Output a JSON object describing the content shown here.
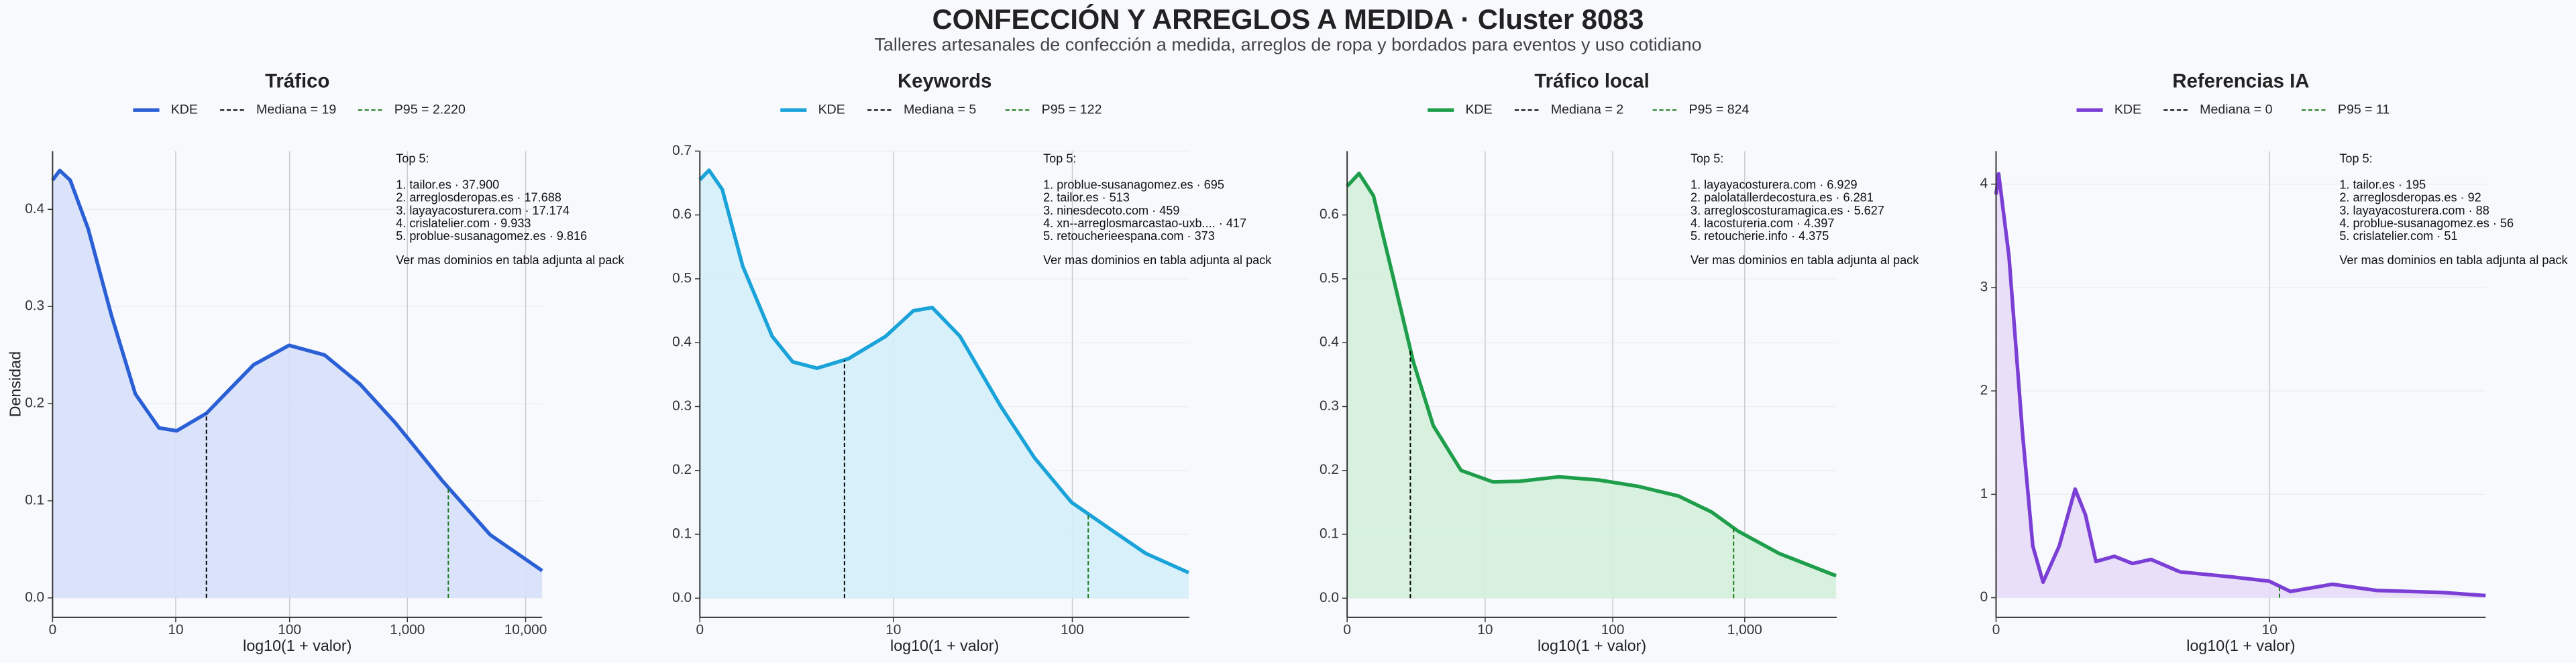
{
  "title": "CONFECCIÓN Y ARREGLOS A MEDIDA · Cluster 8083",
  "subtitle": "Talleres artesanales de confección a medida, arreglos de ropa y bordados para eventos y uso cotidiano",
  "chart_data": [
    {
      "type": "kde",
      "title": "Tráfico",
      "xlabel": "log10(1 + valor)",
      "ylabel": "Densidad",
      "xscale": "log1p",
      "xlim": [
        0,
        13800
      ],
      "xticks": [
        0,
        10,
        100,
        {
          "value": 1000,
          "label": "1,000"
        },
        {
          "value": 10000,
          "label": "10,000"
        }
      ],
      "ylim": [
        -0.02,
        0.46
      ],
      "yticks": [
        {
          "value": 0,
          "label": "0.0"
        },
        0.1,
        0.2,
        0.3,
        0.4
      ],
      "grid": true,
      "fill_color": "#d6e0f8",
      "x": [
        0,
        0.15,
        0.41,
        1.0,
        2.16,
        4.01,
        6.94,
        10.2,
        19,
        30.6,
        49.1,
        99,
        199,
        397,
        793,
        1994,
        5011,
        13800
      ],
      "series": [
        {
          "name": "KDE",
          "color": "#2a5fd6",
          "values": [
            0.43,
            0.44,
            0.43,
            0.38,
            0.29,
            0.21,
            0.175,
            0.172,
            0.19,
            0.215,
            0.24,
            0.26,
            0.25,
            0.22,
            0.18,
            0.12,
            0.065,
            0.028
          ]
        }
      ],
      "median": {
        "value": 19,
        "label": "Mediana = 19",
        "color": "#000000"
      },
      "p95": {
        "value": 2220,
        "label": "P95 = 2.220",
        "color": "#1a7a1a"
      },
      "annotation": {
        "title": "Top 5:",
        "items": [
          "1. tailor.es · 37.900",
          "2. arreglosderopas.es · 17.688",
          "3. layayacosturera.com · 17.174",
          "4. crislatelier.com · 9.933",
          "5. problue-susanagomez.es · 9.816"
        ],
        "note": "Ver mas dominios en tabla adjunta al pack"
      }
    },
    {
      "type": "kde",
      "title": "Keywords",
      "xlabel": "log10(1 + valor)",
      "xscale": "log1p",
      "xlim": [
        0,
        430
      ],
      "xticks": [
        0,
        10,
        100
      ],
      "ylim": [
        -0.03,
        0.7
      ],
      "yticks": [
        {
          "value": 0,
          "label": "0.0"
        },
        0.1,
        0.2,
        0.3,
        0.4,
        0.5,
        0.6,
        0.7
      ],
      "grid": true,
      "fill_color": "#d4eefa",
      "x": [
        0,
        0.12,
        0.32,
        0.7,
        1.45,
        2.16,
        3.27,
        5.31,
        9,
        13.1,
        16.8,
        24.1,
        40.7,
        62.1,
        99,
        157,
        250,
        426
      ],
      "series": [
        {
          "name": "KDE",
          "color": "#1aa3d9",
          "values": [
            0.655,
            0.67,
            0.64,
            0.52,
            0.41,
            0.37,
            0.36,
            0.375,
            0.41,
            0.45,
            0.455,
            0.41,
            0.3,
            0.22,
            0.15,
            0.11,
            0.07,
            0.04
          ]
        }
      ],
      "median": {
        "value": 5,
        "label": "Mediana = 5",
        "color": "#000000"
      },
      "p95": {
        "value": 122,
        "label": "P95 = 122",
        "color": "#1a7a1a"
      },
      "annotation": {
        "title": "Top 5:",
        "items": [
          "1. problue-susanagomez.es · 695",
          "2. tailor.es · 513",
          "3. ninesdecoto.com · 459",
          "4. xn--arreglosmarcastao-uxb.... · 417",
          "5. retoucherieespana.com · 373"
        ],
        "note": "Ver mas dominios en tabla adjunta al pack"
      }
    },
    {
      "type": "kde",
      "title": "Tráfico local",
      "xlabel": "log10(1 + valor)",
      "xscale": "log1p",
      "xlim": [
        0,
        4950
      ],
      "xticks": [
        0,
        10,
        100,
        {
          "value": 1000,
          "label": "1,000"
        }
      ],
      "ylim": [
        -0.03,
        0.7
      ],
      "yticks": [
        {
          "value": 0,
          "label": "0.0"
        },
        0.1,
        0.2,
        0.3,
        0.4,
        0.5,
        0.6
      ],
      "grid": true,
      "fill_color": "#d4efdc",
      "x": [
        0,
        0.23,
        0.58,
        1.24,
        2.16,
        3.47,
        6.24,
        11.6,
        19,
        38.8,
        78.4,
        157,
        315,
        561,
        890,
        1819,
        4897
      ],
      "series": [
        {
          "name": "KDE",
          "color": "#1e9e4a",
          "values": [
            0.645,
            0.665,
            0.63,
            0.5,
            0.37,
            0.27,
            0.2,
            0.182,
            0.183,
            0.19,
            0.185,
            0.175,
            0.16,
            0.135,
            0.105,
            0.07,
            0.035
          ]
        }
      ],
      "median": {
        "value": 2,
        "label": "Mediana = 2",
        "color": "#000000"
      },
      "p95": {
        "value": 824,
        "label": "P95 = 824",
        "color": "#1a7a1a"
      },
      "annotation": {
        "title": "Top 5:",
        "items": [
          "1. layayacosturera.com · 6.929",
          "2. palolatallerdecostura.es · 6.281",
          "3. arregloscosturamagica.es · 5.627",
          "4. lacostureria.com · 4.397",
          "5. retoucherie.info · 4.375"
        ],
        "note": "Ver mas dominios en tabla adjunta al pack"
      }
    },
    {
      "type": "kde",
      "title": "Referencias IA",
      "xlabel": "log10(1 + valor)",
      "xscale": "log1p",
      "xlim": [
        0,
        72.1
      ],
      "xticks": [
        0,
        10
      ],
      "ylim": [
        -0.19,
        4.32
      ],
      "yticks": [
        0,
        1,
        2,
        3,
        4
      ],
      "grid": true,
      "fill_color": "#e8dcf7",
      "x": [
        0,
        0.023,
        0.12,
        0.26,
        0.38,
        0.51,
        0.74,
        1.0,
        1.19,
        1.4,
        1.82,
        2.31,
        2.89,
        4.01,
        6.94,
        9.96,
        12.2,
        18.1,
        27.2,
        49.1,
        72.1
      ],
      "series": [
        {
          "name": "KDE",
          "color": "#7b3fd6",
          "values": [
            3.9,
            4.1,
            3.3,
            1.6,
            0.5,
            0.15,
            0.5,
            1.05,
            0.8,
            0.35,
            0.4,
            0.33,
            0.37,
            0.25,
            0.2,
            0.16,
            0.06,
            0.13,
            0.07,
            0.05,
            0.02
          ]
        }
      ],
      "median": {
        "value": 0,
        "label": "Mediana = 0",
        "color": "#000000"
      },
      "p95": {
        "value": 11,
        "label": "P95 = 11",
        "color": "#1a7a1a"
      },
      "annotation": {
        "title": "Top 5:",
        "items": [
          "1. tailor.es · 195",
          "2. arreglosderopas.es · 92",
          "3. layayacosturera.com · 88",
          "4. problue-susanagomez.es · 56",
          "5. crislatelier.com · 51"
        ],
        "note": "Ver mas dominios en tabla adjunta al pack"
      }
    }
  ]
}
